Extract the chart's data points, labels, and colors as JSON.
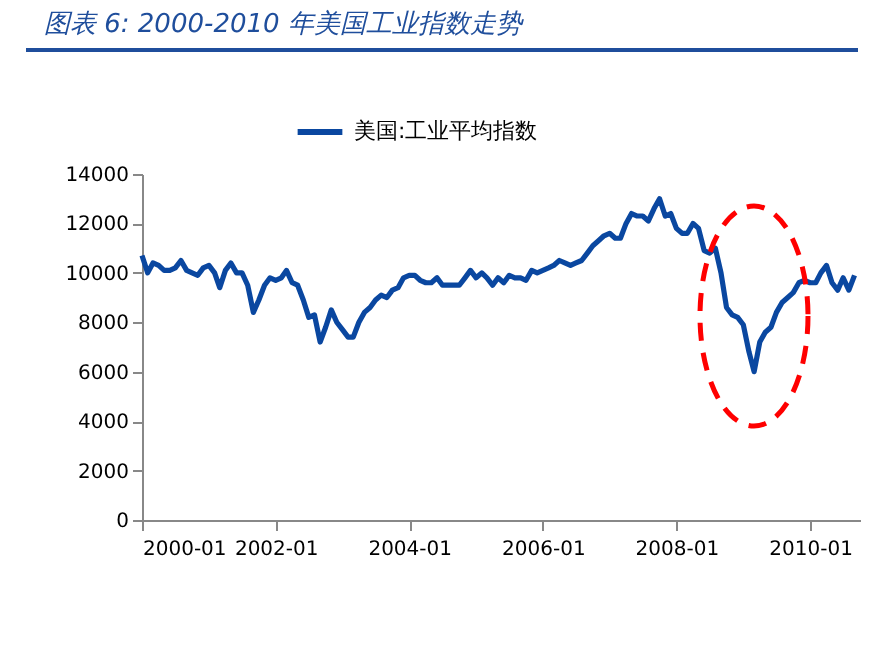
{
  "chart_data": {
    "type": "line",
    "title": "图表 6: 2000-2010 年美国工业指数走势",
    "x": [
      "2000-01",
      "2000-02",
      "2000-03",
      "2000-04",
      "2000-05",
      "2000-06",
      "2000-07",
      "2000-08",
      "2000-09",
      "2000-10",
      "2000-11",
      "2000-12",
      "2001-01",
      "2001-02",
      "2001-03",
      "2001-04",
      "2001-05",
      "2001-06",
      "2001-07",
      "2001-08",
      "2001-09",
      "2001-10",
      "2001-11",
      "2001-12",
      "2002-01",
      "2002-02",
      "2002-03",
      "2002-04",
      "2002-05",
      "2002-06",
      "2002-07",
      "2002-08",
      "2002-09",
      "2002-10",
      "2002-11",
      "2002-12",
      "2003-01",
      "2003-02",
      "2003-03",
      "2003-04",
      "2003-05",
      "2003-06",
      "2003-07",
      "2003-08",
      "2003-09",
      "2003-10",
      "2003-11",
      "2003-12",
      "2004-01",
      "2004-02",
      "2004-03",
      "2004-04",
      "2004-05",
      "2004-06",
      "2004-07",
      "2004-08",
      "2004-09",
      "2004-10",
      "2004-11",
      "2004-12",
      "2005-01",
      "2005-02",
      "2005-03",
      "2005-04",
      "2005-05",
      "2005-06",
      "2005-07",
      "2005-08",
      "2005-09",
      "2005-10",
      "2005-11",
      "2005-12",
      "2006-01",
      "2006-02",
      "2006-03",
      "2006-04",
      "2006-05",
      "2006-06",
      "2006-07",
      "2006-08",
      "2006-09",
      "2006-10",
      "2006-11",
      "2006-12",
      "2007-01",
      "2007-02",
      "2007-03",
      "2007-04",
      "2007-05",
      "2007-06",
      "2007-07",
      "2007-08",
      "2007-09",
      "2007-10",
      "2007-11",
      "2007-12",
      "2008-01",
      "2008-02",
      "2008-03",
      "2008-04",
      "2008-05",
      "2008-06",
      "2008-07",
      "2008-08",
      "2008-09",
      "2008-10",
      "2008-11",
      "2008-12",
      "2009-01",
      "2009-02",
      "2009-03",
      "2009-04",
      "2009-05",
      "2009-06",
      "2009-07",
      "2009-08",
      "2009-09",
      "2009-10",
      "2009-11",
      "2009-12",
      "2010-01",
      "2010-02",
      "2010-03",
      "2010-04",
      "2010-05",
      "2010-06",
      "2010-07",
      "2010-08",
      "2010-09"
    ],
    "series": [
      {
        "name": "美国:工业平均指数",
        "color": "#0a47a0",
        "values": [
          10700,
          10000,
          10400,
          10300,
          10100,
          10100,
          10200,
          10500,
          10100,
          10000,
          9900,
          10200,
          10300,
          10000,
          9400,
          10100,
          10400,
          10000,
          10000,
          9500,
          8400,
          8900,
          9500,
          9800,
          9700,
          9800,
          10100,
          9600,
          9500,
          8900,
          8200,
          8300,
          7200,
          7800,
          8500,
          8000,
          7700,
          7400,
          7400,
          8000,
          8400,
          8600,
          8900,
          9100,
          9000,
          9300,
          9400,
          9800,
          9900,
          9900,
          9700,
          9600,
          9600,
          9800,
          9500,
          9500,
          9500,
          9500,
          9800,
          10100,
          9800,
          10000,
          9800,
          9500,
          9800,
          9600,
          9900,
          9800,
          9800,
          9700,
          10100,
          10000,
          10100,
          10200,
          10300,
          10500,
          10400,
          10300,
          10400,
          10500,
          10800,
          11100,
          11300,
          11500,
          11600,
          11400,
          11400,
          12000,
          12400,
          12300,
          12300,
          12100,
          12600,
          13000,
          12300,
          12400,
          11800,
          11600,
          11600,
          12000,
          11800,
          10900,
          10800,
          11000,
          10000,
          8600,
          8300,
          8200,
          7900,
          6800,
          6000,
          7200,
          7600,
          7800,
          8400,
          8800,
          9000,
          9200,
          9600,
          9700,
          9600,
          9600,
          10000,
          10300,
          9600,
          9300,
          9800,
          9300,
          9900
        ]
      }
    ],
    "xlim": [
      "2000-01",
      "2010-10"
    ],
    "xticks": [
      "2000-01",
      "2002-01",
      "2004-01",
      "2006-01",
      "2008-01",
      "2010-01"
    ],
    "ylim": [
      0,
      14000
    ],
    "yticks": [
      0,
      2000,
      4000,
      6000,
      8000,
      10000,
      12000,
      14000
    ],
    "legend": "top"
  }
}
